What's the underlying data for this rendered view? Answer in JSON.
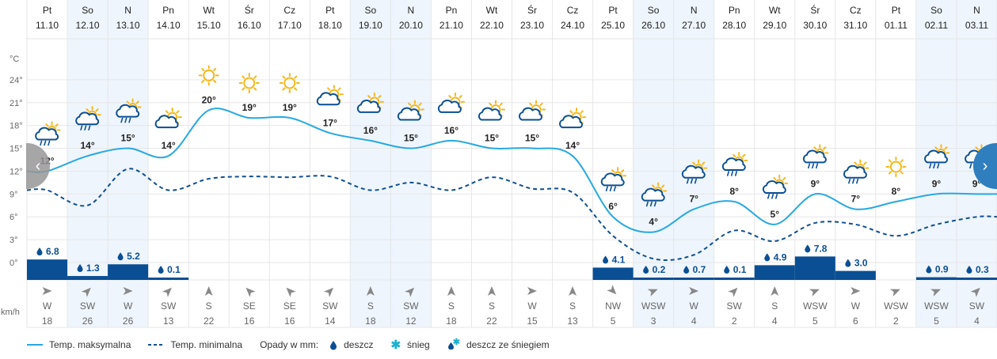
{
  "chart_data": {
    "type": "line",
    "days": [
      {
        "dow": "Pt",
        "date": "11.10",
        "max": 12,
        "min": 9.5,
        "precip": 6.8,
        "wind_dir": "W",
        "wind": 18,
        "icon": "sun-cloud-rain-icon",
        "weekend": false
      },
      {
        "dow": "So",
        "date": "12.10",
        "max": 14,
        "min": 7.5,
        "precip": 1.3,
        "wind_dir": "SW",
        "wind": 26,
        "icon": "sun-cloud-rain-icon",
        "weekend": true
      },
      {
        "dow": "N",
        "date": "13.10",
        "max": 15,
        "min": 12.3,
        "precip": 5.2,
        "wind_dir": "W",
        "wind": 26,
        "icon": "sun-cloud-rain-icon",
        "weekend": true
      },
      {
        "dow": "Pn",
        "date": "14.10",
        "max": 14,
        "min": 9.5,
        "precip": 0.1,
        "wind_dir": "SW",
        "wind": 13,
        "icon": "sun-cloud-icon",
        "weekend": false
      },
      {
        "dow": "Wt",
        "date": "15.10",
        "max": 20,
        "min": 11,
        "precip": null,
        "wind_dir": "S",
        "wind": 22,
        "icon": "sun-icon",
        "weekend": false
      },
      {
        "dow": "Śr",
        "date": "16.10",
        "max": 19,
        "min": 11.3,
        "precip": null,
        "wind_dir": "SE",
        "wind": 16,
        "icon": "sun-icon",
        "weekend": false
      },
      {
        "dow": "Cz",
        "date": "17.10",
        "max": 19,
        "min": 11.2,
        "precip": null,
        "wind_dir": "SE",
        "wind": 16,
        "icon": "sun-icon",
        "weekend": false
      },
      {
        "dow": "Pt",
        "date": "18.10",
        "max": 17,
        "min": 11.3,
        "precip": null,
        "wind_dir": "SW",
        "wind": 14,
        "icon": "sun-cloud-icon",
        "weekend": false
      },
      {
        "dow": "So",
        "date": "19.10",
        "max": 16,
        "min": 9.5,
        "precip": null,
        "wind_dir": "S",
        "wind": 18,
        "icon": "sun-cloud-icon",
        "weekend": true
      },
      {
        "dow": "N",
        "date": "20.10",
        "max": 15,
        "min": 10.5,
        "precip": null,
        "wind_dir": "SW",
        "wind": 12,
        "icon": "sun-cloud-icon",
        "weekend": true
      },
      {
        "dow": "Pn",
        "date": "21.10",
        "max": 16,
        "min": 9.5,
        "precip": null,
        "wind_dir": "S",
        "wind": 18,
        "icon": "sun-cloud-icon",
        "weekend": false
      },
      {
        "dow": "Wt",
        "date": "22.10",
        "max": 15,
        "min": 11.2,
        "precip": null,
        "wind_dir": "S",
        "wind": 22,
        "icon": "sun-cloud-icon",
        "weekend": false
      },
      {
        "dow": "Śr",
        "date": "23.10",
        "max": 15,
        "min": 9.7,
        "precip": null,
        "wind_dir": "W",
        "wind": 15,
        "icon": "sun-cloud-icon",
        "weekend": false
      },
      {
        "dow": "Cz",
        "date": "24.10",
        "max": 14,
        "min": 9.2,
        "precip": null,
        "wind_dir": "S",
        "wind": 13,
        "icon": "sun-cloud-icon",
        "weekend": false
      },
      {
        "dow": "Pt",
        "date": "25.10",
        "max": 6,
        "min": 3.5,
        "precip": 4.1,
        "wind_dir": "NW",
        "wind": 5,
        "icon": "sun-cloud-rain-icon",
        "weekend": false
      },
      {
        "dow": "So",
        "date": "26.10",
        "max": 4,
        "min": 0.5,
        "precip": 0.2,
        "wind_dir": "WSW",
        "wind": 3,
        "icon": "sun-cloud-rain-icon",
        "weekend": true
      },
      {
        "dow": "N",
        "date": "27.10",
        "max": 7,
        "min": 1,
        "precip": 0.7,
        "wind_dir": "W",
        "wind": 4,
        "icon": "sun-cloud-rain-icon",
        "weekend": true
      },
      {
        "dow": "Pn",
        "date": "28.10",
        "max": 8,
        "min": 4.2,
        "precip": 0.1,
        "wind_dir": "SW",
        "wind": 2,
        "icon": "sun-cloud-rain-icon",
        "weekend": false
      },
      {
        "dow": "Wt",
        "date": "29.10",
        "max": 5,
        "min": 2.8,
        "precip": 4.9,
        "wind_dir": "S",
        "wind": 4,
        "icon": "sun-cloud-rain-icon",
        "weekend": false
      },
      {
        "dow": "Śr",
        "date": "30.10",
        "max": 9,
        "min": 5.2,
        "precip": 7.8,
        "wind_dir": "WSW",
        "wind": 5,
        "icon": "sun-cloud-rain-icon",
        "weekend": false
      },
      {
        "dow": "Cz",
        "date": "31.10",
        "max": 7,
        "min": 5,
        "precip": 3.0,
        "wind_dir": "W",
        "wind": 6,
        "icon": "sun-cloud-rain-icon",
        "weekend": false
      },
      {
        "dow": "Pt",
        "date": "01.11",
        "max": 8,
        "min": 3.5,
        "precip": null,
        "wind_dir": "WSW",
        "wind": 2,
        "icon": "sun-icon",
        "weekend": false
      },
      {
        "dow": "So",
        "date": "02.11",
        "max": 9,
        "min": 5,
        "precip": 0.9,
        "wind_dir": "WSW",
        "wind": 5,
        "icon": "sun-cloud-rain-icon",
        "weekend": true
      },
      {
        "dow": "N",
        "date": "03.11",
        "max": 9,
        "min": 6,
        "precip": 0.3,
        "wind_dir": "SW",
        "wind": 4,
        "icon": "sun-cloud-rain-icon",
        "weekend": true
      }
    ],
    "y_axis": {
      "unit_label": "°C",
      "ticks": [
        0,
        3,
        6,
        9,
        12,
        15,
        18,
        21,
        24
      ],
      "ylim": [
        0,
        27
      ]
    },
    "wind_unit_label": "km/h",
    "legend": {
      "max_label": "Temp. maksymalna",
      "min_label": "Temp. minimalna",
      "precip_lead": "Opady w mm:",
      "rain_label": "deszcz",
      "snow_label": "śnieg",
      "mixed_label": "deszcz ze śniegiem"
    },
    "colors": {
      "max_line": "#27a9e1",
      "min_line": "#0f4f8f",
      "precip_bar": "#0a4f94",
      "weekend_bg": "#eef5fd",
      "grid": "#e6e6e6",
      "sun": "#f5b81a",
      "cloud": "#0a4f94",
      "snow": "#1bb3cf"
    },
    "grid": true
  },
  "nav": {
    "prev_icon": "chevron-left-icon",
    "next_icon": "chevron-right-icon"
  }
}
